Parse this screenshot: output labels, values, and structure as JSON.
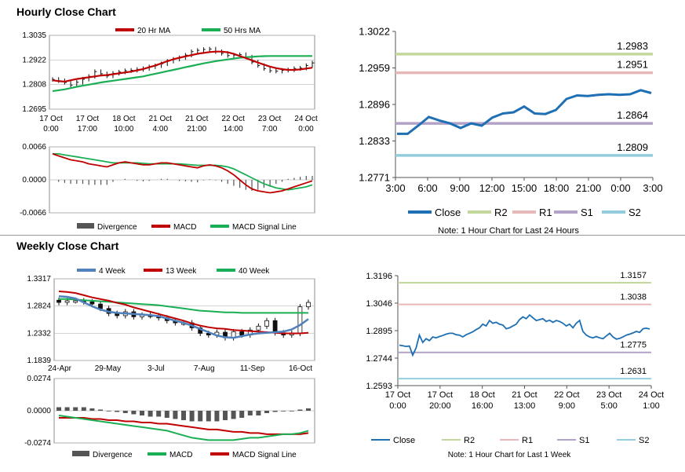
{
  "hourly": {
    "title": "Hourly Close Chart",
    "price_chart": {
      "type": "ohlc",
      "legend": [
        {
          "label": "20 Hr MA",
          "color": "#c00000"
        },
        {
          "label": "50 Hrs MA",
          "color": "#1aaf54"
        }
      ],
      "ylim": [
        1.2695,
        1.3035
      ],
      "yticks": [
        "1.3035",
        "1.2922",
        "1.2808",
        "1.2695"
      ],
      "xticks": [
        {
          "line1": "17 Oct",
          "line2": "0:00"
        },
        {
          "line1": "17 Oct",
          "line2": "17:00"
        },
        {
          "line1": "18 Oct",
          "line2": "10:00"
        },
        {
          "line1": "21 Oct",
          "line2": "4:00"
        },
        {
          "line1": "21 Oct",
          "line2": "21:00"
        },
        {
          "line1": "22 Oct",
          "line2": "14:00"
        },
        {
          "line1": "23 Oct",
          "line2": "7:00"
        },
        {
          "line1": "24 Oct",
          "line2": "0:00"
        }
      ],
      "close_path": [
        1.2832,
        1.2826,
        1.2818,
        1.2806,
        1.2819,
        1.2833,
        1.2846,
        1.2868,
        1.2858,
        1.2848,
        1.286,
        1.2866,
        1.2872,
        1.2874,
        1.2878,
        1.2882,
        1.289,
        1.2895,
        1.2904,
        1.2916,
        1.2925,
        1.2932,
        1.2944,
        1.296,
        1.2966,
        1.297,
        1.2972,
        1.296,
        1.2952,
        1.2942,
        1.2944,
        1.2946,
        1.2935,
        1.2912,
        1.2896,
        1.2882,
        1.2872,
        1.287,
        1.2874,
        1.2876,
        1.2882,
        1.2884,
        1.2896,
        1.2908
      ],
      "ma20": [
        1.2828,
        1.2824,
        1.2822,
        1.2828,
        1.2834,
        1.2838,
        1.2842,
        1.2846,
        1.285,
        1.2852,
        1.2856,
        1.286,
        1.2864,
        1.2868,
        1.2874,
        1.288,
        1.2888,
        1.2896,
        1.2906,
        1.2916,
        1.2925,
        1.2932,
        1.2938,
        1.2944,
        1.295,
        1.2954,
        1.2958,
        1.296,
        1.296,
        1.2957,
        1.295,
        1.294,
        1.293,
        1.292,
        1.291,
        1.29,
        1.2891,
        1.2884,
        1.2879,
        1.2876,
        1.2876,
        1.2878,
        1.2882,
        1.2886
      ],
      "ma50": [
        1.2778,
        1.2782,
        1.2786,
        1.2792,
        1.2798,
        1.2803,
        1.2808,
        1.2813,
        1.2818,
        1.2822,
        1.2826,
        1.283,
        1.2834,
        1.2838,
        1.2842,
        1.2846,
        1.2852,
        1.2858,
        1.2864,
        1.287,
        1.2876,
        1.2882,
        1.2888,
        1.2894,
        1.29,
        1.2906,
        1.2911,
        1.2916,
        1.292,
        1.2924,
        1.2928,
        1.2932,
        1.2934,
        1.2936,
        1.2938,
        1.2939,
        1.294,
        1.294,
        1.294,
        1.294,
        1.294,
        1.294,
        1.294,
        1.294
      ]
    },
    "macd_chart": {
      "type": "line+bar",
      "ylim": [
        -0.0066,
        0.0066
      ],
      "yticks": [
        "0.0066",
        "0.0000",
        "-0.0066"
      ],
      "legend": [
        {
          "label": "Divergence",
          "color": "#555555"
        },
        {
          "label": "MACD",
          "color": "#c00000"
        },
        {
          "label": "MACD Signal Line",
          "color": "#1aaf54"
        }
      ],
      "macd": [
        0.0052,
        0.0048,
        0.0044,
        0.004,
        0.0038,
        0.0036,
        0.0032,
        0.003,
        0.0028,
        0.0026,
        0.003,
        0.0034,
        0.0036,
        0.0034,
        0.0032,
        0.003,
        0.003,
        0.0032,
        0.0034,
        0.0034,
        0.0032,
        0.003,
        0.0028,
        0.0026,
        0.0024,
        0.0028,
        0.003,
        0.0028,
        0.0024,
        0.0018,
        0.001,
        0.0,
        -0.001,
        -0.0018,
        -0.0022,
        -0.0024,
        -0.0026,
        -0.0024,
        -0.0022,
        -0.0018,
        -0.0014,
        -0.001,
        -0.0006,
        -0.0002
      ],
      "signal": [
        0.0052,
        0.0052,
        0.005,
        0.0048,
        0.0046,
        0.0044,
        0.0042,
        0.004,
        0.0038,
        0.0036,
        0.0034,
        0.0034,
        0.0034,
        0.0034,
        0.0034,
        0.0033,
        0.0032,
        0.0032,
        0.0032,
        0.0032,
        0.0032,
        0.0032,
        0.0031,
        0.003,
        0.0029,
        0.0029,
        0.0029,
        0.0029,
        0.0028,
        0.0026,
        0.0022,
        0.0016,
        0.001,
        0.0004,
        -0.0002,
        -0.0008,
        -0.0012,
        -0.0016,
        -0.0018,
        -0.002,
        -0.0018,
        -0.0016,
        -0.0014,
        -0.001
      ]
    }
  },
  "pivot_hourly": {
    "type": "line",
    "ylim": [
      1.2771,
      1.3022
    ],
    "yticks": [
      "1.3022",
      "1.2959",
      "1.2896",
      "1.2833",
      "1.2771"
    ],
    "xticks": [
      "3:00",
      "6:00",
      "9:00",
      "12:00",
      "15:00",
      "18:00",
      "21:00",
      "0:00",
      "3:00"
    ],
    "levels": [
      {
        "label": "1.2983",
        "value": 1.2983,
        "color": "#c3d69b"
      },
      {
        "label": "1.2951",
        "value": 1.2951,
        "color": "#e6b9b8"
      },
      {
        "label": "1.2864",
        "value": 1.2864,
        "color": "#b3a2c7"
      },
      {
        "label": "1.2809",
        "value": 1.2809,
        "color": "#93cddd"
      }
    ],
    "close": [
      1.2846,
      1.2846,
      1.286,
      1.2875,
      1.2869,
      1.2864,
      1.2856,
      1.2864,
      1.286,
      1.2874,
      1.2881,
      1.2883,
      1.2893,
      1.2881,
      1.288,
      1.2887,
      1.2906,
      1.2912,
      1.2911,
      1.2913,
      1.2914,
      1.2913,
      1.2914,
      1.2921,
      1.2916
    ],
    "legend": [
      {
        "label": "Close",
        "color": "#1f6fb4"
      },
      {
        "label": "R2",
        "color": "#c3d69b"
      },
      {
        "label": "R1",
        "color": "#e6b9b8"
      },
      {
        "label": "S1",
        "color": "#b3a2c7"
      },
      {
        "label": "S2",
        "color": "#93cddd"
      }
    ],
    "note": "Note: 1 Hour Chart for Last 24 Hours"
  },
  "weekly": {
    "title": "Weekly Close Chart",
    "price_chart": {
      "type": "ohlc",
      "legend": [
        {
          "label": "4 Week",
          "color": "#4f81bd"
        },
        {
          "label": "13 Week",
          "color": "#c00000"
        },
        {
          "label": "40 Week",
          "color": "#1aaf54"
        }
      ],
      "ylim": [
        1.1839,
        1.3317
      ],
      "yticks": [
        "1.3317",
        "1.2824",
        "1.2332",
        "1.1839"
      ],
      "xticks": [
        "24-Apr",
        "29-May",
        "3-Jul",
        "7-Aug",
        "11-Sep",
        "16-Oct"
      ],
      "closes": [
        1.289,
        1.292,
        1.292,
        1.29,
        1.286,
        1.278,
        1.269,
        1.265,
        1.272,
        1.263,
        1.266,
        1.265,
        1.261,
        1.256,
        1.252,
        1.252,
        1.243,
        1.233,
        1.23,
        1.235,
        1.225,
        1.236,
        1.23,
        1.239,
        1.246,
        1.256,
        1.234,
        1.23,
        1.233,
        1.281,
        1.289
      ],
      "ma4": [
        1.3,
        1.299,
        1.296,
        1.289,
        1.282,
        1.276,
        1.272,
        1.27,
        1.269,
        1.268,
        1.267,
        1.266,
        1.264,
        1.26,
        1.256,
        1.252,
        1.247,
        1.241,
        1.235,
        1.229,
        1.226,
        1.225,
        1.228,
        1.231,
        1.233,
        1.234,
        1.235,
        1.236,
        1.24,
        1.248,
        1.259
      ],
      "ma13": [
        1.309,
        1.308,
        1.306,
        1.302,
        1.298,
        1.295,
        1.292,
        1.288,
        1.285,
        1.28,
        1.276,
        1.272,
        1.268,
        1.264,
        1.26,
        1.256,
        1.251,
        1.247,
        1.244,
        1.242,
        1.241,
        1.239,
        1.238,
        1.237,
        1.236,
        1.235,
        1.234,
        1.233,
        1.233,
        1.233,
        1.234
      ],
      "ma40": [
        1.295,
        1.295,
        1.294,
        1.293,
        1.292,
        1.291,
        1.29,
        1.289,
        1.288,
        1.287,
        1.286,
        1.285,
        1.284,
        1.282,
        1.28,
        1.278,
        1.276,
        1.274,
        1.273,
        1.272,
        1.271,
        1.271,
        1.27,
        1.27,
        1.27,
        1.27,
        1.27,
        1.27,
        1.27,
        1.27,
        1.27
      ]
    },
    "macd_chart": {
      "type": "line+bar",
      "ylim": [
        -0.0274,
        0.0274
      ],
      "yticks": [
        "0.0274",
        "0.0000",
        "-0.0274"
      ],
      "legend": [
        {
          "label": "Divergence",
          "color": "#555555"
        },
        {
          "label": "MACD",
          "color": "#1aaf54"
        },
        {
          "label": "MACD Signal Line",
          "color": "#c00000"
        }
      ],
      "macd": [
        -0.004,
        -0.005,
        -0.006,
        -0.007,
        -0.008,
        -0.009,
        -0.01,
        -0.011,
        -0.012,
        -0.013,
        -0.014,
        -0.015,
        -0.016,
        -0.017,
        -0.019,
        -0.021,
        -0.023,
        -0.024,
        -0.025,
        -0.025,
        -0.025,
        -0.025,
        -0.024,
        -0.023,
        -0.023,
        -0.022,
        -0.021,
        -0.02,
        -0.02,
        -0.019,
        -0.017
      ],
      "signal": [
        -0.006,
        -0.006,
        -0.006,
        -0.006,
        -0.007,
        -0.007,
        -0.008,
        -0.008,
        -0.009,
        -0.009,
        -0.01,
        -0.01,
        -0.011,
        -0.011,
        -0.012,
        -0.013,
        -0.014,
        -0.015,
        -0.016,
        -0.016,
        -0.017,
        -0.018,
        -0.018,
        -0.019,
        -0.019,
        -0.02,
        -0.02,
        -0.02,
        -0.02,
        -0.02,
        -0.019
      ],
      "divergence": [
        0.003,
        0.003,
        0.003,
        0.003,
        0.002,
        0.001,
        0.0,
        -0.001,
        -0.002,
        -0.003,
        -0.004,
        -0.005,
        -0.005,
        -0.006,
        -0.007,
        -0.008,
        -0.009,
        -0.009,
        -0.009,
        -0.009,
        -0.008,
        -0.007,
        -0.006,
        -0.004,
        -0.004,
        -0.002,
        -0.001,
        0.0,
        0.0,
        0.001,
        0.002
      ]
    }
  },
  "pivot_weekly": {
    "type": "line",
    "ylim": [
      1.2593,
      1.3196
    ],
    "yticks": [
      "1.3196",
      "1.3046",
      "1.2895",
      "1.2744",
      "1.2593"
    ],
    "xticks": [
      {
        "line1": "17 Oct",
        "line2": "0:00"
      },
      {
        "line1": "17 Oct",
        "line2": "20:00"
      },
      {
        "line1": "18 Oct",
        "line2": "16:00"
      },
      {
        "line1": "21 Oct",
        "line2": "13:00"
      },
      {
        "line1": "22 Oct",
        "line2": "9:00"
      },
      {
        "line1": "23 Oct",
        "line2": "5:00"
      },
      {
        "line1": "24 Oct",
        "line2": "1:00"
      }
    ],
    "levels": [
      {
        "label": "1.3157",
        "value": 1.3157,
        "color": "#c3d69b"
      },
      {
        "label": "1.3038",
        "value": 1.3038,
        "color": "#e6b9b8"
      },
      {
        "label": "1.2775",
        "value": 1.2775,
        "color": "#b3a2c7"
      },
      {
        "label": "1.2631",
        "value": 1.2631,
        "color": "#93cddd"
      }
    ],
    "close": [
      1.2815,
      1.2812,
      1.2808,
      1.281,
      1.276,
      1.28,
      1.287,
      1.283,
      1.285,
      1.284,
      1.286,
      1.2855,
      1.2862,
      1.2868,
      1.2875,
      1.288,
      1.288,
      1.2872,
      1.287,
      1.286,
      1.2872,
      1.288,
      1.2888,
      1.29,
      1.291,
      1.293,
      1.292,
      1.295,
      1.2935,
      1.294,
      1.293,
      1.2925,
      1.2905,
      1.291,
      1.292,
      1.293,
      1.2955,
      1.297,
      1.296,
      1.298,
      1.2965,
      1.295,
      1.2955,
      1.296,
      1.2945,
      1.2952,
      1.294,
      1.295,
      1.2945,
      1.2935,
      1.292,
      1.293,
      1.291,
      1.2935,
      1.295,
      1.289,
      1.287,
      1.286,
      1.2855,
      1.2862,
      1.2855,
      1.285,
      1.2865,
      1.288,
      1.286,
      1.2848,
      1.2852,
      1.286,
      1.287,
      1.2875,
      1.2882,
      1.289,
      1.2885,
      1.2905,
      1.2908,
      1.2903
    ],
    "legend": [
      {
        "label": "Close",
        "color": "#1f6fb4"
      },
      {
        "label": "R2",
        "color": "#c3d69b"
      },
      {
        "label": "R1",
        "color": "#e6b9b8"
      },
      {
        "label": "S1",
        "color": "#b3a2c7"
      },
      {
        "label": "S2",
        "color": "#93cddd"
      }
    ],
    "note": "Note: 1 Hour Chart for Last 1 Week"
  }
}
